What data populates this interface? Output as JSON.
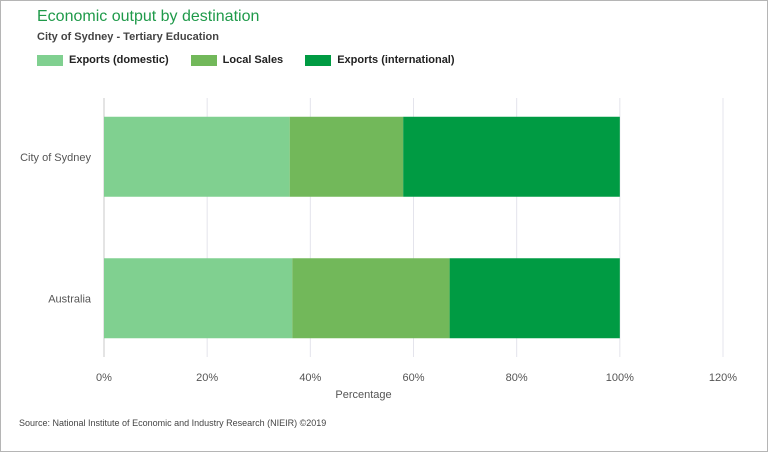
{
  "title": "Economic output by destination",
  "subtitle": "City of Sydney - Tertiary Education",
  "source": "Source: National Institute of Economic and Industry Research (NIEIR) ©2019",
  "chart_data": {
    "type": "bar",
    "orientation": "horizontal",
    "stacked": true,
    "categories": [
      "City of Sydney",
      "Australia"
    ],
    "series": [
      {
        "name": "Exports (domestic)",
        "color": "#80d090",
        "values": [
          36,
          36.5
        ]
      },
      {
        "name": "Local Sales",
        "color": "#72b85a",
        "values": [
          22,
          30.5
        ]
      },
      {
        "name": "Exports (international)",
        "color": "#009b43",
        "values": [
          42,
          33
        ]
      }
    ],
    "xlabel": "Percentage",
    "xlim": [
      0,
      120
    ],
    "xticks": [
      "0%",
      "20%",
      "40%",
      "60%",
      "80%",
      "100%",
      "120%"
    ],
    "grid": "vertical",
    "legend_position": "top-left"
  }
}
